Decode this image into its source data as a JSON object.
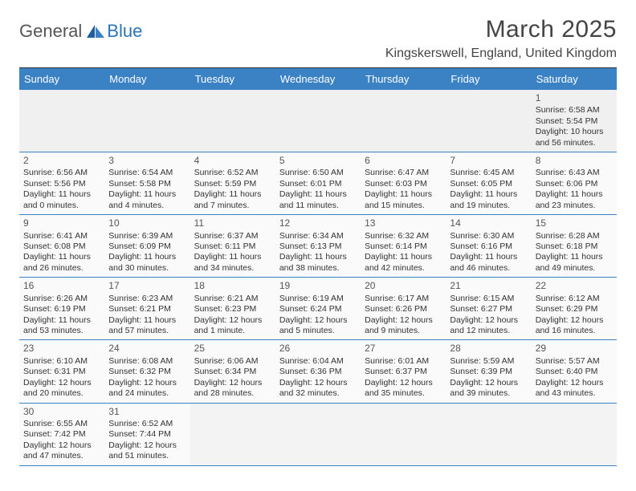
{
  "logo": {
    "part1": "General",
    "part2": "Blue"
  },
  "title": "March 2025",
  "location": "Kingskerswell, England, United Kingdom",
  "colors": {
    "header_bg": "#3b82c4",
    "header_text": "#ffffff",
    "divider": "#333333",
    "cell_border": "#3b82c4",
    "logo_gray": "#555555",
    "logo_blue": "#2a74b8"
  },
  "day_headers": [
    "Sunday",
    "Monday",
    "Tuesday",
    "Wednesday",
    "Thursday",
    "Friday",
    "Saturday"
  ],
  "weeks": [
    [
      null,
      null,
      null,
      null,
      null,
      null,
      {
        "n": "1",
        "sr": "Sunrise: 6:58 AM",
        "ss": "Sunset: 5:54 PM",
        "d1": "Daylight: 10 hours",
        "d2": "and 56 minutes."
      }
    ],
    [
      {
        "n": "2",
        "sr": "Sunrise: 6:56 AM",
        "ss": "Sunset: 5:56 PM",
        "d1": "Daylight: 11 hours",
        "d2": "and 0 minutes."
      },
      {
        "n": "3",
        "sr": "Sunrise: 6:54 AM",
        "ss": "Sunset: 5:58 PM",
        "d1": "Daylight: 11 hours",
        "d2": "and 4 minutes."
      },
      {
        "n": "4",
        "sr": "Sunrise: 6:52 AM",
        "ss": "Sunset: 5:59 PM",
        "d1": "Daylight: 11 hours",
        "d2": "and 7 minutes."
      },
      {
        "n": "5",
        "sr": "Sunrise: 6:50 AM",
        "ss": "Sunset: 6:01 PM",
        "d1": "Daylight: 11 hours",
        "d2": "and 11 minutes."
      },
      {
        "n": "6",
        "sr": "Sunrise: 6:47 AM",
        "ss": "Sunset: 6:03 PM",
        "d1": "Daylight: 11 hours",
        "d2": "and 15 minutes."
      },
      {
        "n": "7",
        "sr": "Sunrise: 6:45 AM",
        "ss": "Sunset: 6:05 PM",
        "d1": "Daylight: 11 hours",
        "d2": "and 19 minutes."
      },
      {
        "n": "8",
        "sr": "Sunrise: 6:43 AM",
        "ss": "Sunset: 6:06 PM",
        "d1": "Daylight: 11 hours",
        "d2": "and 23 minutes."
      }
    ],
    [
      {
        "n": "9",
        "sr": "Sunrise: 6:41 AM",
        "ss": "Sunset: 6:08 PM",
        "d1": "Daylight: 11 hours",
        "d2": "and 26 minutes."
      },
      {
        "n": "10",
        "sr": "Sunrise: 6:39 AM",
        "ss": "Sunset: 6:09 PM",
        "d1": "Daylight: 11 hours",
        "d2": "and 30 minutes."
      },
      {
        "n": "11",
        "sr": "Sunrise: 6:37 AM",
        "ss": "Sunset: 6:11 PM",
        "d1": "Daylight: 11 hours",
        "d2": "and 34 minutes."
      },
      {
        "n": "12",
        "sr": "Sunrise: 6:34 AM",
        "ss": "Sunset: 6:13 PM",
        "d1": "Daylight: 11 hours",
        "d2": "and 38 minutes."
      },
      {
        "n": "13",
        "sr": "Sunrise: 6:32 AM",
        "ss": "Sunset: 6:14 PM",
        "d1": "Daylight: 11 hours",
        "d2": "and 42 minutes."
      },
      {
        "n": "14",
        "sr": "Sunrise: 6:30 AM",
        "ss": "Sunset: 6:16 PM",
        "d1": "Daylight: 11 hours",
        "d2": "and 46 minutes."
      },
      {
        "n": "15",
        "sr": "Sunrise: 6:28 AM",
        "ss": "Sunset: 6:18 PM",
        "d1": "Daylight: 11 hours",
        "d2": "and 49 minutes."
      }
    ],
    [
      {
        "n": "16",
        "sr": "Sunrise: 6:26 AM",
        "ss": "Sunset: 6:19 PM",
        "d1": "Daylight: 11 hours",
        "d2": "and 53 minutes."
      },
      {
        "n": "17",
        "sr": "Sunrise: 6:23 AM",
        "ss": "Sunset: 6:21 PM",
        "d1": "Daylight: 11 hours",
        "d2": "and 57 minutes."
      },
      {
        "n": "18",
        "sr": "Sunrise: 6:21 AM",
        "ss": "Sunset: 6:23 PM",
        "d1": "Daylight: 12 hours",
        "d2": "and 1 minute."
      },
      {
        "n": "19",
        "sr": "Sunrise: 6:19 AM",
        "ss": "Sunset: 6:24 PM",
        "d1": "Daylight: 12 hours",
        "d2": "and 5 minutes."
      },
      {
        "n": "20",
        "sr": "Sunrise: 6:17 AM",
        "ss": "Sunset: 6:26 PM",
        "d1": "Daylight: 12 hours",
        "d2": "and 9 minutes."
      },
      {
        "n": "21",
        "sr": "Sunrise: 6:15 AM",
        "ss": "Sunset: 6:27 PM",
        "d1": "Daylight: 12 hours",
        "d2": "and 12 minutes."
      },
      {
        "n": "22",
        "sr": "Sunrise: 6:12 AM",
        "ss": "Sunset: 6:29 PM",
        "d1": "Daylight: 12 hours",
        "d2": "and 16 minutes."
      }
    ],
    [
      {
        "n": "23",
        "sr": "Sunrise: 6:10 AM",
        "ss": "Sunset: 6:31 PM",
        "d1": "Daylight: 12 hours",
        "d2": "and 20 minutes."
      },
      {
        "n": "24",
        "sr": "Sunrise: 6:08 AM",
        "ss": "Sunset: 6:32 PM",
        "d1": "Daylight: 12 hours",
        "d2": "and 24 minutes."
      },
      {
        "n": "25",
        "sr": "Sunrise: 6:06 AM",
        "ss": "Sunset: 6:34 PM",
        "d1": "Daylight: 12 hours",
        "d2": "and 28 minutes."
      },
      {
        "n": "26",
        "sr": "Sunrise: 6:04 AM",
        "ss": "Sunset: 6:36 PM",
        "d1": "Daylight: 12 hours",
        "d2": "and 32 minutes."
      },
      {
        "n": "27",
        "sr": "Sunrise: 6:01 AM",
        "ss": "Sunset: 6:37 PM",
        "d1": "Daylight: 12 hours",
        "d2": "and 35 minutes."
      },
      {
        "n": "28",
        "sr": "Sunrise: 5:59 AM",
        "ss": "Sunset: 6:39 PM",
        "d1": "Daylight: 12 hours",
        "d2": "and 39 minutes."
      },
      {
        "n": "29",
        "sr": "Sunrise: 5:57 AM",
        "ss": "Sunset: 6:40 PM",
        "d1": "Daylight: 12 hours",
        "d2": "and 43 minutes."
      }
    ],
    [
      {
        "n": "30",
        "sr": "Sunrise: 6:55 AM",
        "ss": "Sunset: 7:42 PM",
        "d1": "Daylight: 12 hours",
        "d2": "and 47 minutes."
      },
      {
        "n": "31",
        "sr": "Sunrise: 6:52 AM",
        "ss": "Sunset: 7:44 PM",
        "d1": "Daylight: 12 hours",
        "d2": "and 51 minutes."
      },
      null,
      null,
      null,
      null,
      null
    ]
  ]
}
